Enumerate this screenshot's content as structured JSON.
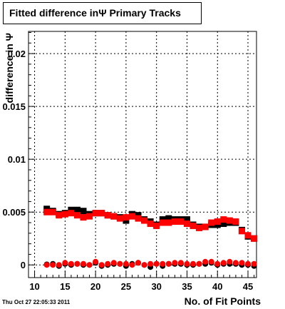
{
  "title": "Fitted difference inΨ  Primary Tracks",
  "footer": "Thu Oct 27 22:05:33 2011",
  "chart_data": {
    "type": "scatter",
    "title": "Fitted difference inΨ  Primary Tracks",
    "xlabel": "No. of Fit Points",
    "ylabel": "difference in Ψ",
    "xlim": [
      9,
      46.4
    ],
    "ylim": [
      -0.0012,
      0.0221
    ],
    "xticks": [
      "10",
      "15",
      "20",
      "25",
      "30",
      "35",
      "40",
      "45"
    ],
    "yticks": [
      "0",
      "0.005",
      "0.01",
      "0.015",
      "0.02"
    ],
    "grid": true,
    "series": [
      {
        "color": "#000000",
        "marker": "square",
        "x": [
          12,
          13,
          14,
          15,
          16,
          17,
          18,
          19,
          20,
          21,
          22,
          23,
          24,
          25,
          26,
          27,
          28,
          29,
          30,
          31,
          32,
          33,
          34,
          35,
          36,
          37,
          38,
          39,
          40,
          41,
          42,
          43,
          44,
          45,
          46
        ],
        "y": [
          0.0053,
          0.0051,
          0.0048,
          0.0049,
          0.0052,
          0.0052,
          0.0051,
          0.0048,
          0.0049,
          0.0049,
          0.0047,
          0.0046,
          0.0045,
          0.0042,
          0.0048,
          0.0047,
          0.0043,
          0.0041,
          0.0038,
          0.0043,
          0.0044,
          0.0043,
          0.0043,
          0.0043,
          0.0038,
          0.0036,
          0.0036,
          0.0038,
          0.0038,
          0.0039,
          0.004,
          0.004,
          0.0033,
          0.0027,
          0.0025
        ]
      },
      {
        "color": "#ff0000",
        "marker": "square",
        "x": [
          12,
          13,
          14,
          15,
          16,
          17,
          18,
          19,
          20,
          21,
          22,
          23,
          24,
          25,
          26,
          27,
          28,
          29,
          30,
          31,
          32,
          33,
          34,
          35,
          36,
          37,
          38,
          39,
          40,
          41,
          42,
          43,
          44,
          45,
          46
        ],
        "y": [
          0.005,
          0.005,
          0.0047,
          0.0048,
          0.0049,
          0.0047,
          0.0045,
          0.0046,
          0.0049,
          0.0049,
          0.0047,
          0.0046,
          0.0044,
          0.0045,
          0.0046,
          0.0044,
          0.0042,
          0.0039,
          0.0037,
          0.004,
          0.004,
          0.0041,
          0.0041,
          0.0039,
          0.0037,
          0.0035,
          0.0036,
          0.004,
          0.0041,
          0.0043,
          0.0042,
          0.0041,
          0.0032,
          0.0028,
          0.0025
        ]
      },
      {
        "color": "#000000",
        "marker": "circle",
        "x": [
          12,
          13,
          14,
          15,
          16,
          17,
          18,
          19,
          20,
          21,
          22,
          23,
          24,
          25,
          26,
          27,
          28,
          29,
          30,
          31,
          32,
          33,
          34,
          35,
          36,
          37,
          38,
          39,
          40,
          41,
          42,
          43,
          44,
          45,
          46
        ],
        "y": [
          5e-05,
          0.0001,
          -0.0001,
          0.0001,
          0.0,
          0.0001,
          0.0,
          0.0,
          0.0002,
          -0.0001,
          0.0,
          0.0001,
          0.0001,
          -0.0001,
          0.0001,
          0.0002,
          0.0,
          -0.0002,
          0.0001,
          -0.0001,
          0.0001,
          0.0001,
          0.0001,
          0.0,
          0.0,
          0.0001,
          0.0001,
          0.0002,
          0.0,
          0.0001,
          0.0001,
          0.0001,
          0.0,
          0.0,
          -0.0001
        ]
      },
      {
        "color": "#ff0000",
        "marker": "circle",
        "x": [
          12,
          13,
          14,
          15,
          16,
          17,
          18,
          19,
          20,
          21,
          22,
          23,
          24,
          25,
          26,
          27,
          28,
          29,
          30,
          31,
          32,
          33,
          34,
          35,
          36,
          37,
          38,
          39,
          40,
          41,
          42,
          43,
          44,
          45,
          46
        ],
        "y": [
          0.0,
          0.0,
          0.0,
          0.0002,
          0.0001,
          0.0001,
          0.0001,
          0.0,
          0.0003,
          0.0,
          0.0001,
          0.0002,
          0.0001,
          0.0001,
          0.0,
          0.0002,
          0.0,
          0.0001,
          0.0001,
          0.0001,
          0.0001,
          0.0002,
          0.0002,
          0.0001,
          0.0001,
          0.0001,
          0.0003,
          0.0003,
          0.0001,
          0.0002,
          0.0003,
          0.0002,
          0.0002,
          0.0001,
          0.0001
        ]
      }
    ]
  }
}
